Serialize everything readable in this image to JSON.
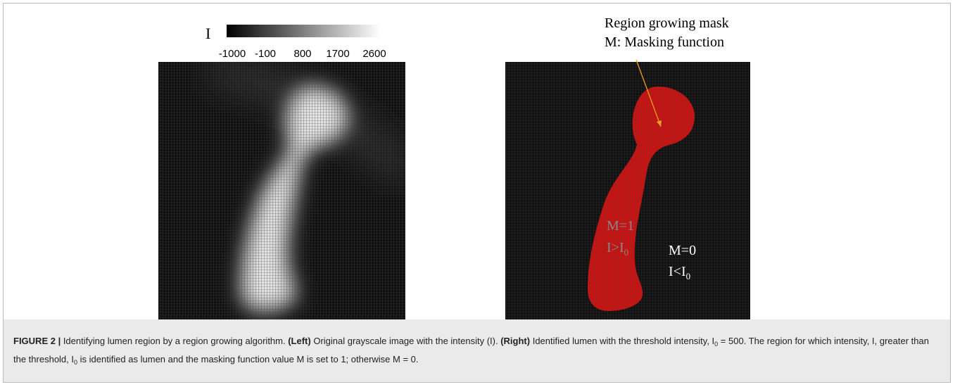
{
  "left_panel": {
    "colorbar": {
      "label": "I",
      "ticks": [
        "-1000",
        "-100",
        "800",
        "1700",
        "2600"
      ]
    }
  },
  "right_panel": {
    "annotation": [
      "Region growing mask",
      "M: Masking function"
    ],
    "inside": {
      "mask": "M=1",
      "condition": "I>I",
      "subscript": "0"
    },
    "outside": {
      "mask": "M=0",
      "condition": "I<I",
      "subscript": "0"
    }
  },
  "caption": [
    {
      "text": "FIGURE 2 |",
      "style": "bold"
    },
    {
      "text": " Identifying lumen region by a region growing algorithm. "
    },
    {
      "text": "(Left)",
      "style": "bold"
    },
    {
      "text": " Original grayscale image with the intensity (I). "
    },
    {
      "text": "(Right)",
      "style": "bold"
    },
    {
      "text": " Identified lumen with the threshold intensity, I"
    },
    {
      "text": "0",
      "style": "sub"
    },
    {
      "text": " = 500. The region for which intensity, I, greater than the threshold, I"
    },
    {
      "text": "0",
      "style": "sub"
    },
    {
      "text": " is identified as lumen and the masking function value M is set to 1; otherwise M = 0."
    }
  ]
}
